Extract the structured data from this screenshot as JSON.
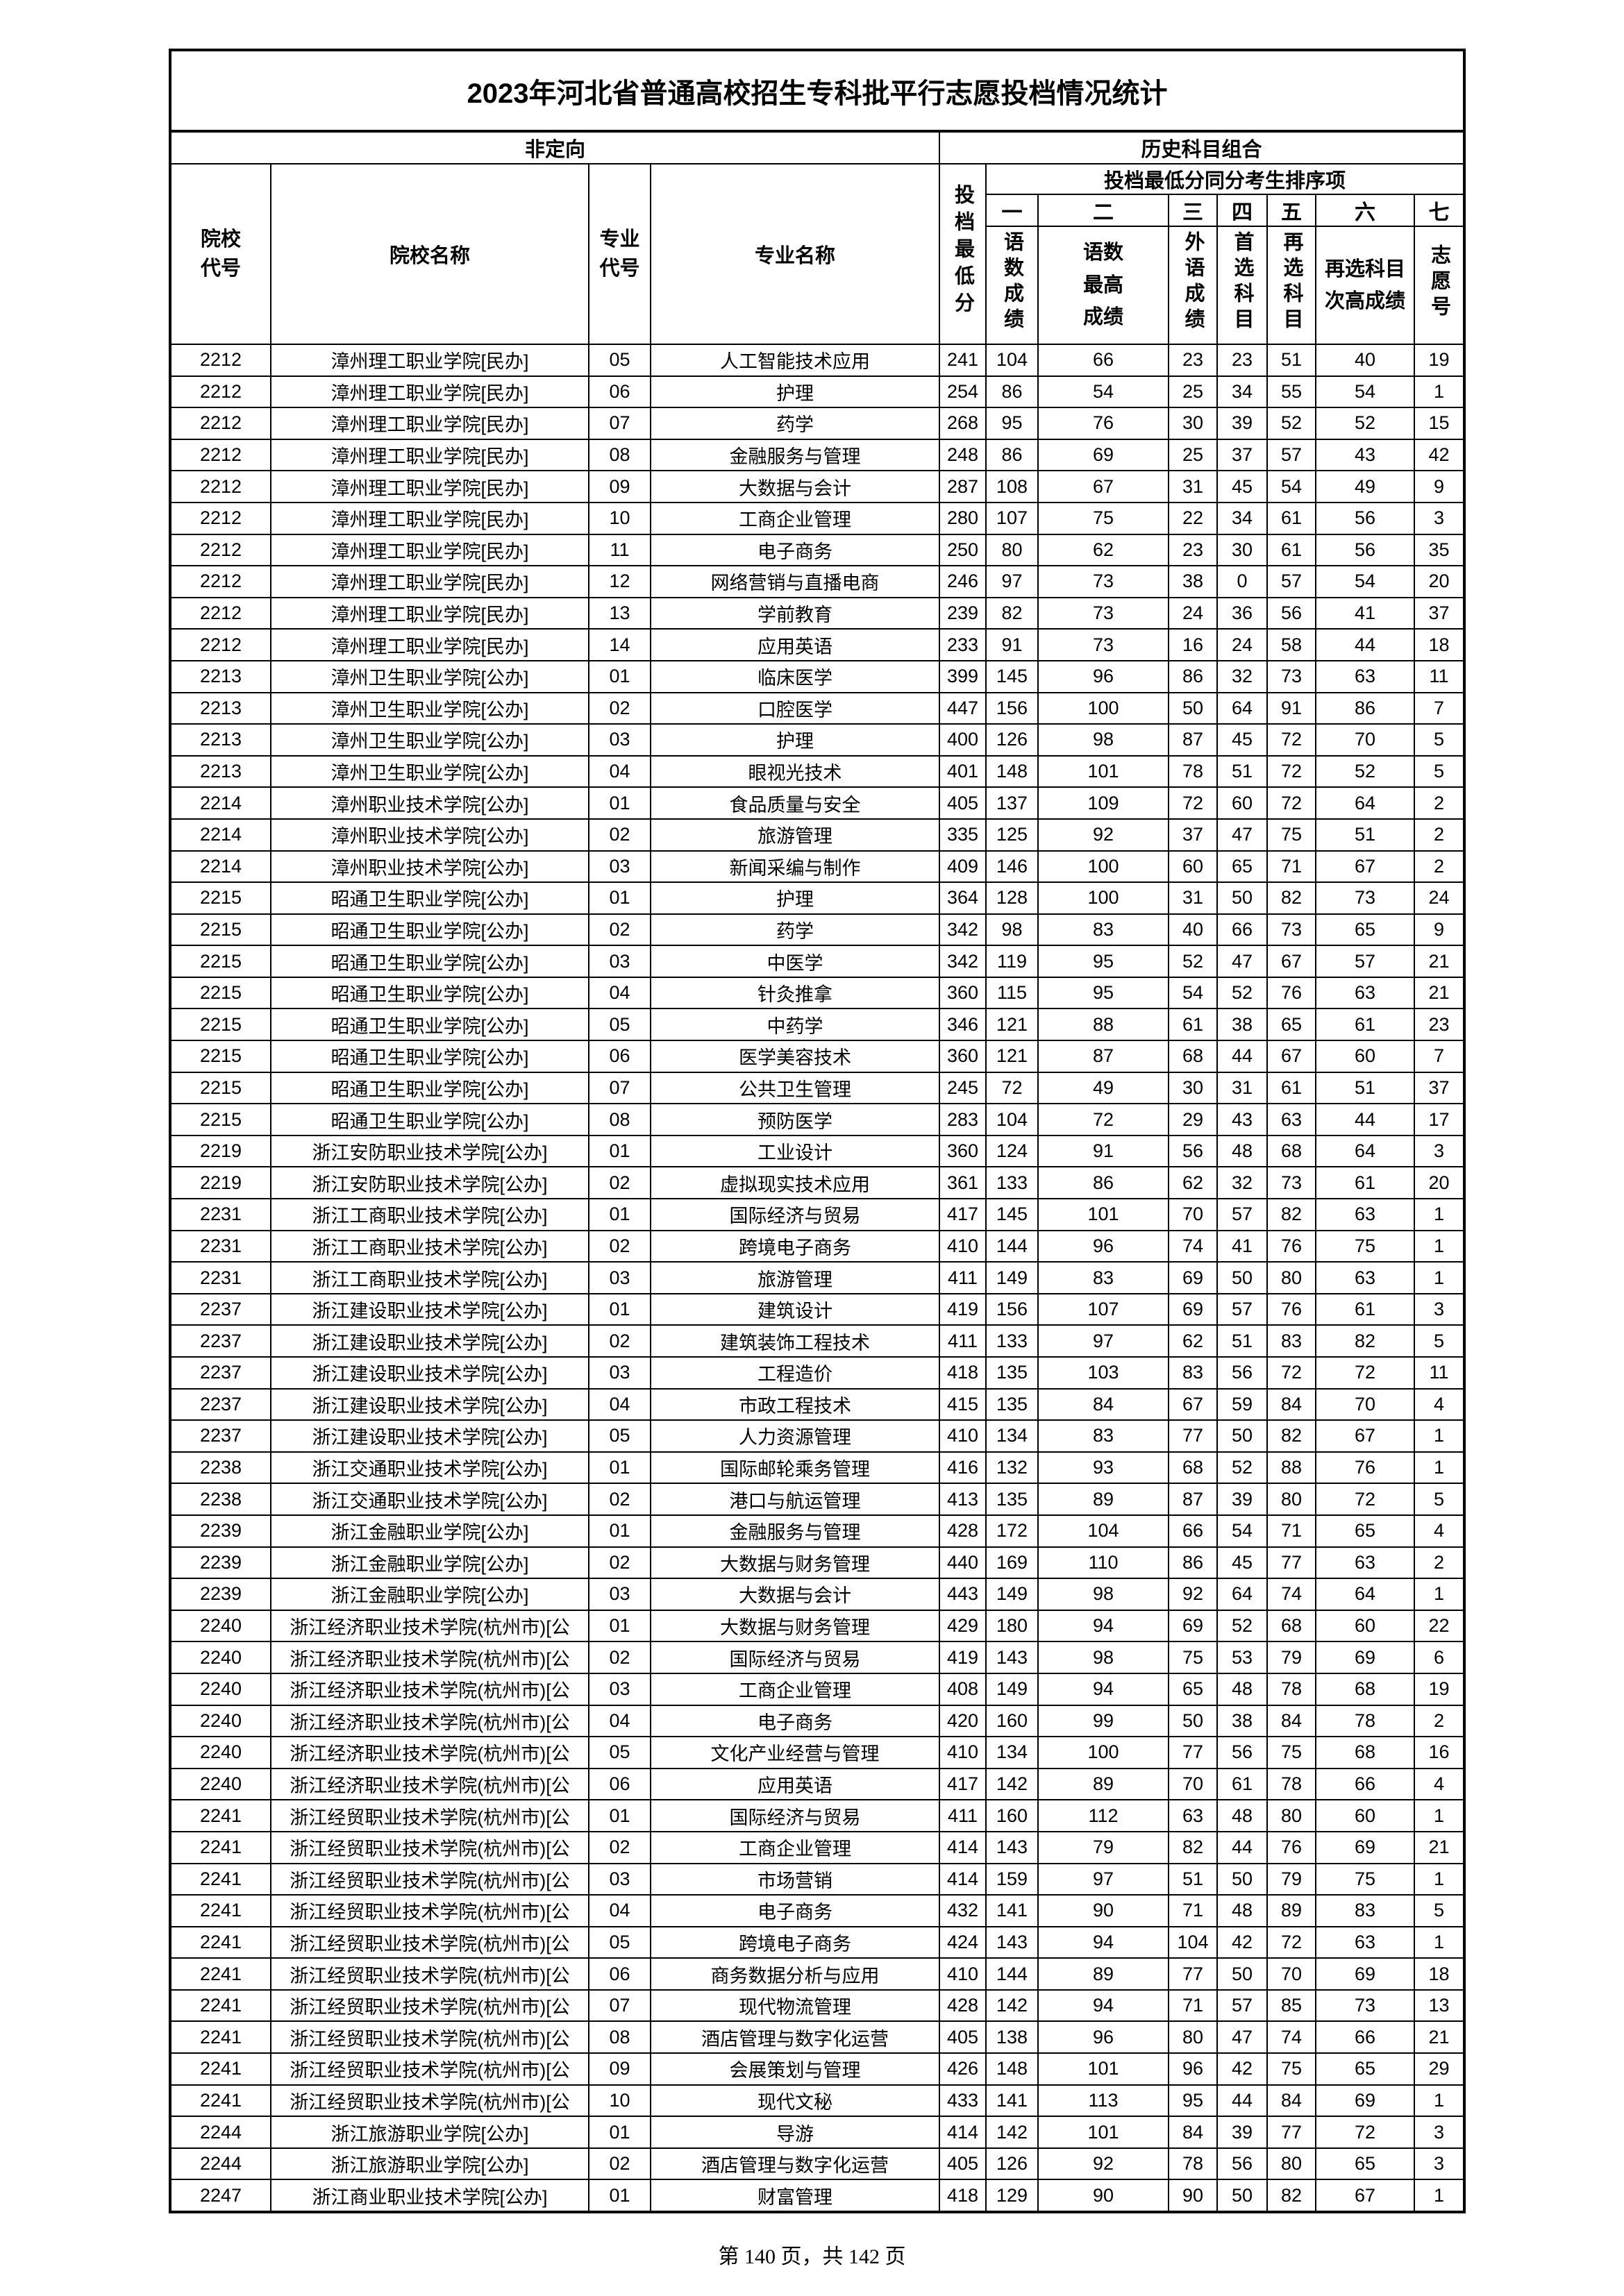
{
  "title": "2023年河北省普通高校招生专科批平行志愿投档情况统计",
  "group_left": "非定向",
  "group_right": "历史科目组合",
  "headers": {
    "school_code": "院校代号",
    "school_name": "院校名称",
    "major_code": "专业代号",
    "major_name": "专业名称",
    "min_score": "投档最低分",
    "tiebreak": "投档最低分同分考生排序项",
    "ranks": [
      "一",
      "二",
      "三",
      "四",
      "五",
      "六",
      "七"
    ],
    "rank_labels": [
      "语数成绩",
      "语数最高成绩",
      "外语成绩",
      "首选科目",
      "再选科目",
      "再选科目次高成绩",
      "志愿号"
    ]
  },
  "rows": [
    [
      "2212",
      "漳州理工职业学院[民办]",
      "05",
      "人工智能技术应用",
      "241",
      "104",
      "66",
      "23",
      "23",
      "51",
      "40",
      "19"
    ],
    [
      "2212",
      "漳州理工职业学院[民办]",
      "06",
      "护理",
      "254",
      "86",
      "54",
      "25",
      "34",
      "55",
      "54",
      "1"
    ],
    [
      "2212",
      "漳州理工职业学院[民办]",
      "07",
      "药学",
      "268",
      "95",
      "76",
      "30",
      "39",
      "52",
      "52",
      "15"
    ],
    [
      "2212",
      "漳州理工职业学院[民办]",
      "08",
      "金融服务与管理",
      "248",
      "86",
      "69",
      "25",
      "37",
      "57",
      "43",
      "42"
    ],
    [
      "2212",
      "漳州理工职业学院[民办]",
      "09",
      "大数据与会计",
      "287",
      "108",
      "67",
      "31",
      "45",
      "54",
      "49",
      "9"
    ],
    [
      "2212",
      "漳州理工职业学院[民办]",
      "10",
      "工商企业管理",
      "280",
      "107",
      "75",
      "22",
      "34",
      "61",
      "56",
      "3"
    ],
    [
      "2212",
      "漳州理工职业学院[民办]",
      "11",
      "电子商务",
      "250",
      "80",
      "62",
      "23",
      "30",
      "61",
      "56",
      "35"
    ],
    [
      "2212",
      "漳州理工职业学院[民办]",
      "12",
      "网络营销与直播电商",
      "246",
      "97",
      "73",
      "38",
      "0",
      "57",
      "54",
      "20"
    ],
    [
      "2212",
      "漳州理工职业学院[民办]",
      "13",
      "学前教育",
      "239",
      "82",
      "73",
      "24",
      "36",
      "56",
      "41",
      "37"
    ],
    [
      "2212",
      "漳州理工职业学院[民办]",
      "14",
      "应用英语",
      "233",
      "91",
      "73",
      "16",
      "24",
      "58",
      "44",
      "18"
    ],
    [
      "2213",
      "漳州卫生职业学院[公办]",
      "01",
      "临床医学",
      "399",
      "145",
      "96",
      "86",
      "32",
      "73",
      "63",
      "11"
    ],
    [
      "2213",
      "漳州卫生职业学院[公办]",
      "02",
      "口腔医学",
      "447",
      "156",
      "100",
      "50",
      "64",
      "91",
      "86",
      "7"
    ],
    [
      "2213",
      "漳州卫生职业学院[公办]",
      "03",
      "护理",
      "400",
      "126",
      "98",
      "87",
      "45",
      "72",
      "70",
      "5"
    ],
    [
      "2213",
      "漳州卫生职业学院[公办]",
      "04",
      "眼视光技术",
      "401",
      "148",
      "101",
      "78",
      "51",
      "72",
      "52",
      "5"
    ],
    [
      "2214",
      "漳州职业技术学院[公办]",
      "01",
      "食品质量与安全",
      "405",
      "137",
      "109",
      "72",
      "60",
      "72",
      "64",
      "2"
    ],
    [
      "2214",
      "漳州职业技术学院[公办]",
      "02",
      "旅游管理",
      "335",
      "125",
      "92",
      "37",
      "47",
      "75",
      "51",
      "2"
    ],
    [
      "2214",
      "漳州职业技术学院[公办]",
      "03",
      "新闻采编与制作",
      "409",
      "146",
      "100",
      "60",
      "65",
      "71",
      "67",
      "2"
    ],
    [
      "2215",
      "昭通卫生职业学院[公办]",
      "01",
      "护理",
      "364",
      "128",
      "100",
      "31",
      "50",
      "82",
      "73",
      "24"
    ],
    [
      "2215",
      "昭通卫生职业学院[公办]",
      "02",
      "药学",
      "342",
      "98",
      "83",
      "40",
      "66",
      "73",
      "65",
      "9"
    ],
    [
      "2215",
      "昭通卫生职业学院[公办]",
      "03",
      "中医学",
      "342",
      "119",
      "95",
      "52",
      "47",
      "67",
      "57",
      "21"
    ],
    [
      "2215",
      "昭通卫生职业学院[公办]",
      "04",
      "针灸推拿",
      "360",
      "115",
      "95",
      "54",
      "52",
      "76",
      "63",
      "21"
    ],
    [
      "2215",
      "昭通卫生职业学院[公办]",
      "05",
      "中药学",
      "346",
      "121",
      "88",
      "61",
      "38",
      "65",
      "61",
      "23"
    ],
    [
      "2215",
      "昭通卫生职业学院[公办]",
      "06",
      "医学美容技术",
      "360",
      "121",
      "87",
      "68",
      "44",
      "67",
      "60",
      "7"
    ],
    [
      "2215",
      "昭通卫生职业学院[公办]",
      "07",
      "公共卫生管理",
      "245",
      "72",
      "49",
      "30",
      "31",
      "61",
      "51",
      "37"
    ],
    [
      "2215",
      "昭通卫生职业学院[公办]",
      "08",
      "预防医学",
      "283",
      "104",
      "72",
      "29",
      "43",
      "63",
      "44",
      "17"
    ],
    [
      "2219",
      "浙江安防职业技术学院[公办]",
      "01",
      "工业设计",
      "360",
      "124",
      "91",
      "56",
      "48",
      "68",
      "64",
      "3"
    ],
    [
      "2219",
      "浙江安防职业技术学院[公办]",
      "02",
      "虚拟现实技术应用",
      "361",
      "133",
      "86",
      "62",
      "32",
      "73",
      "61",
      "20"
    ],
    [
      "2231",
      "浙江工商职业技术学院[公办]",
      "01",
      "国际经济与贸易",
      "417",
      "145",
      "101",
      "70",
      "57",
      "82",
      "63",
      "1"
    ],
    [
      "2231",
      "浙江工商职业技术学院[公办]",
      "02",
      "跨境电子商务",
      "410",
      "144",
      "96",
      "74",
      "41",
      "76",
      "75",
      "1"
    ],
    [
      "2231",
      "浙江工商职业技术学院[公办]",
      "03",
      "旅游管理",
      "411",
      "149",
      "83",
      "69",
      "50",
      "80",
      "63",
      "1"
    ],
    [
      "2237",
      "浙江建设职业技术学院[公办]",
      "01",
      "建筑设计",
      "419",
      "156",
      "107",
      "69",
      "57",
      "76",
      "61",
      "3"
    ],
    [
      "2237",
      "浙江建设职业技术学院[公办]",
      "02",
      "建筑装饰工程技术",
      "411",
      "133",
      "97",
      "62",
      "51",
      "83",
      "82",
      "5"
    ],
    [
      "2237",
      "浙江建设职业技术学院[公办]",
      "03",
      "工程造价",
      "418",
      "135",
      "103",
      "83",
      "56",
      "72",
      "72",
      "11"
    ],
    [
      "2237",
      "浙江建设职业技术学院[公办]",
      "04",
      "市政工程技术",
      "415",
      "135",
      "84",
      "67",
      "59",
      "84",
      "70",
      "4"
    ],
    [
      "2237",
      "浙江建设职业技术学院[公办]",
      "05",
      "人力资源管理",
      "410",
      "134",
      "83",
      "77",
      "50",
      "82",
      "67",
      "1"
    ],
    [
      "2238",
      "浙江交通职业技术学院[公办]",
      "01",
      "国际邮轮乘务管理",
      "416",
      "132",
      "93",
      "68",
      "52",
      "88",
      "76",
      "1"
    ],
    [
      "2238",
      "浙江交通职业技术学院[公办]",
      "02",
      "港口与航运管理",
      "413",
      "135",
      "89",
      "87",
      "39",
      "80",
      "72",
      "5"
    ],
    [
      "2239",
      "浙江金融职业学院[公办]",
      "01",
      "金融服务与管理",
      "428",
      "172",
      "104",
      "66",
      "54",
      "71",
      "65",
      "4"
    ],
    [
      "2239",
      "浙江金融职业学院[公办]",
      "02",
      "大数据与财务管理",
      "440",
      "169",
      "110",
      "86",
      "45",
      "77",
      "63",
      "2"
    ],
    [
      "2239",
      "浙江金融职业学院[公办]",
      "03",
      "大数据与会计",
      "443",
      "149",
      "98",
      "92",
      "64",
      "74",
      "64",
      "1"
    ],
    [
      "2240",
      "浙江经济职业技术学院(杭州市)[公",
      "01",
      "大数据与财务管理",
      "429",
      "180",
      "94",
      "69",
      "52",
      "68",
      "60",
      "22"
    ],
    [
      "2240",
      "浙江经济职业技术学院(杭州市)[公",
      "02",
      "国际经济与贸易",
      "419",
      "143",
      "98",
      "75",
      "53",
      "79",
      "69",
      "6"
    ],
    [
      "2240",
      "浙江经济职业技术学院(杭州市)[公",
      "03",
      "工商企业管理",
      "408",
      "149",
      "94",
      "65",
      "48",
      "78",
      "68",
      "19"
    ],
    [
      "2240",
      "浙江经济职业技术学院(杭州市)[公",
      "04",
      "电子商务",
      "420",
      "160",
      "99",
      "50",
      "38",
      "84",
      "78",
      "2"
    ],
    [
      "2240",
      "浙江经济职业技术学院(杭州市)[公",
      "05",
      "文化产业经营与管理",
      "410",
      "134",
      "100",
      "77",
      "56",
      "75",
      "68",
      "16"
    ],
    [
      "2240",
      "浙江经济职业技术学院(杭州市)[公",
      "06",
      "应用英语",
      "417",
      "142",
      "89",
      "70",
      "61",
      "78",
      "66",
      "4"
    ],
    [
      "2241",
      "浙江经贸职业技术学院(杭州市)[公",
      "01",
      "国际经济与贸易",
      "411",
      "160",
      "112",
      "63",
      "48",
      "80",
      "60",
      "1"
    ],
    [
      "2241",
      "浙江经贸职业技术学院(杭州市)[公",
      "02",
      "工商企业管理",
      "414",
      "143",
      "79",
      "82",
      "44",
      "76",
      "69",
      "21"
    ],
    [
      "2241",
      "浙江经贸职业技术学院(杭州市)[公",
      "03",
      "市场营销",
      "414",
      "159",
      "97",
      "51",
      "50",
      "79",
      "75",
      "1"
    ],
    [
      "2241",
      "浙江经贸职业技术学院(杭州市)[公",
      "04",
      "电子商务",
      "432",
      "141",
      "90",
      "71",
      "48",
      "89",
      "83",
      "5"
    ],
    [
      "2241",
      "浙江经贸职业技术学院(杭州市)[公",
      "05",
      "跨境电子商务",
      "424",
      "143",
      "94",
      "104",
      "42",
      "72",
      "63",
      "1"
    ],
    [
      "2241",
      "浙江经贸职业技术学院(杭州市)[公",
      "06",
      "商务数据分析与应用",
      "410",
      "144",
      "89",
      "77",
      "50",
      "70",
      "69",
      "18"
    ],
    [
      "2241",
      "浙江经贸职业技术学院(杭州市)[公",
      "07",
      "现代物流管理",
      "428",
      "142",
      "94",
      "71",
      "57",
      "85",
      "73",
      "13"
    ],
    [
      "2241",
      "浙江经贸职业技术学院(杭州市)[公",
      "08",
      "酒店管理与数字化运营",
      "405",
      "138",
      "96",
      "80",
      "47",
      "74",
      "66",
      "21"
    ],
    [
      "2241",
      "浙江经贸职业技术学院(杭州市)[公",
      "09",
      "会展策划与管理",
      "426",
      "148",
      "101",
      "96",
      "42",
      "75",
      "65",
      "29"
    ],
    [
      "2241",
      "浙江经贸职业技术学院(杭州市)[公",
      "10",
      "现代文秘",
      "433",
      "141",
      "113",
      "95",
      "44",
      "84",
      "69",
      "1"
    ],
    [
      "2244",
      "浙江旅游职业学院[公办]",
      "01",
      "导游",
      "414",
      "142",
      "101",
      "84",
      "39",
      "77",
      "72",
      "3"
    ],
    [
      "2244",
      "浙江旅游职业学院[公办]",
      "02",
      "酒店管理与数字化运营",
      "405",
      "126",
      "92",
      "78",
      "56",
      "80",
      "65",
      "3"
    ],
    [
      "2247",
      "浙江商业职业技术学院[公办]",
      "01",
      "财富管理",
      "418",
      "129",
      "90",
      "90",
      "50",
      "82",
      "67",
      "1"
    ]
  ],
  "footer": "第 140 页，共 142 页"
}
